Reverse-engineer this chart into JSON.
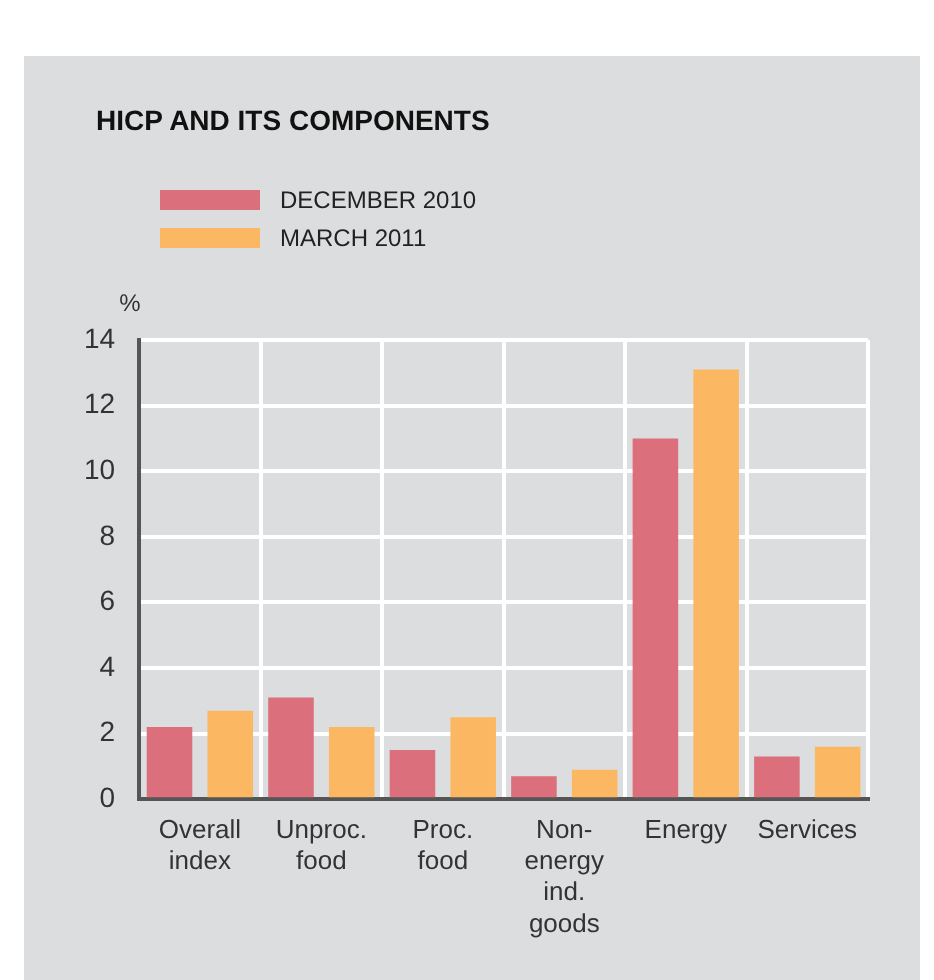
{
  "chart_data": {
    "type": "bar",
    "title": "HICP AND ITS COMPONENTS",
    "ylabel": "%",
    "categories": [
      "Overall\nindex",
      "Unproc.\nfood",
      "Proc.\nfood",
      "Non-\nenergy\nind.\ngoods",
      "Energy",
      "Services"
    ],
    "series": [
      {
        "name": "DECEMBER 2010",
        "color": "#dc6f7c",
        "values": [
          2.2,
          3.1,
          1.5,
          0.7,
          11.0,
          1.3
        ]
      },
      {
        "name": "MARCH 2011",
        "color": "#fcb762",
        "values": [
          2.7,
          2.2,
          2.5,
          0.9,
          13.1,
          1.6
        ]
      }
    ],
    "ylim": [
      0,
      14
    ],
    "yticks": [
      0,
      2,
      4,
      6,
      8,
      10,
      12,
      14
    ],
    "grid": true,
    "legend": "top left"
  }
}
